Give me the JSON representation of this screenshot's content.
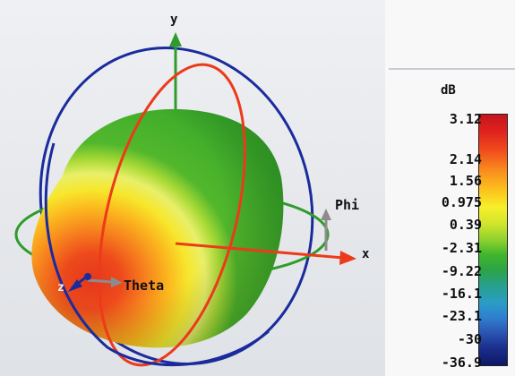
{
  "axes": {
    "y_label": "y",
    "x_label": "x",
    "z_label": "z",
    "phi_label": "Phi",
    "theta_label": "Theta"
  },
  "legend": {
    "unit": "dB",
    "ticks": [
      "3.12",
      "2.14",
      "1.56",
      "0.975",
      "0.39",
      "-2.31",
      "-9.22",
      "-16.1",
      "-23.1",
      "-30",
      "-36.9"
    ]
  },
  "colors": {
    "phi_ring": "#2e9c2a",
    "theta_ring": "#ec3a1a",
    "outer_ring": "#1a2b9c",
    "pattern_max": "#e8331c",
    "pattern_mid": "#f6ea2c",
    "pattern_base": "#35a82c"
  }
}
